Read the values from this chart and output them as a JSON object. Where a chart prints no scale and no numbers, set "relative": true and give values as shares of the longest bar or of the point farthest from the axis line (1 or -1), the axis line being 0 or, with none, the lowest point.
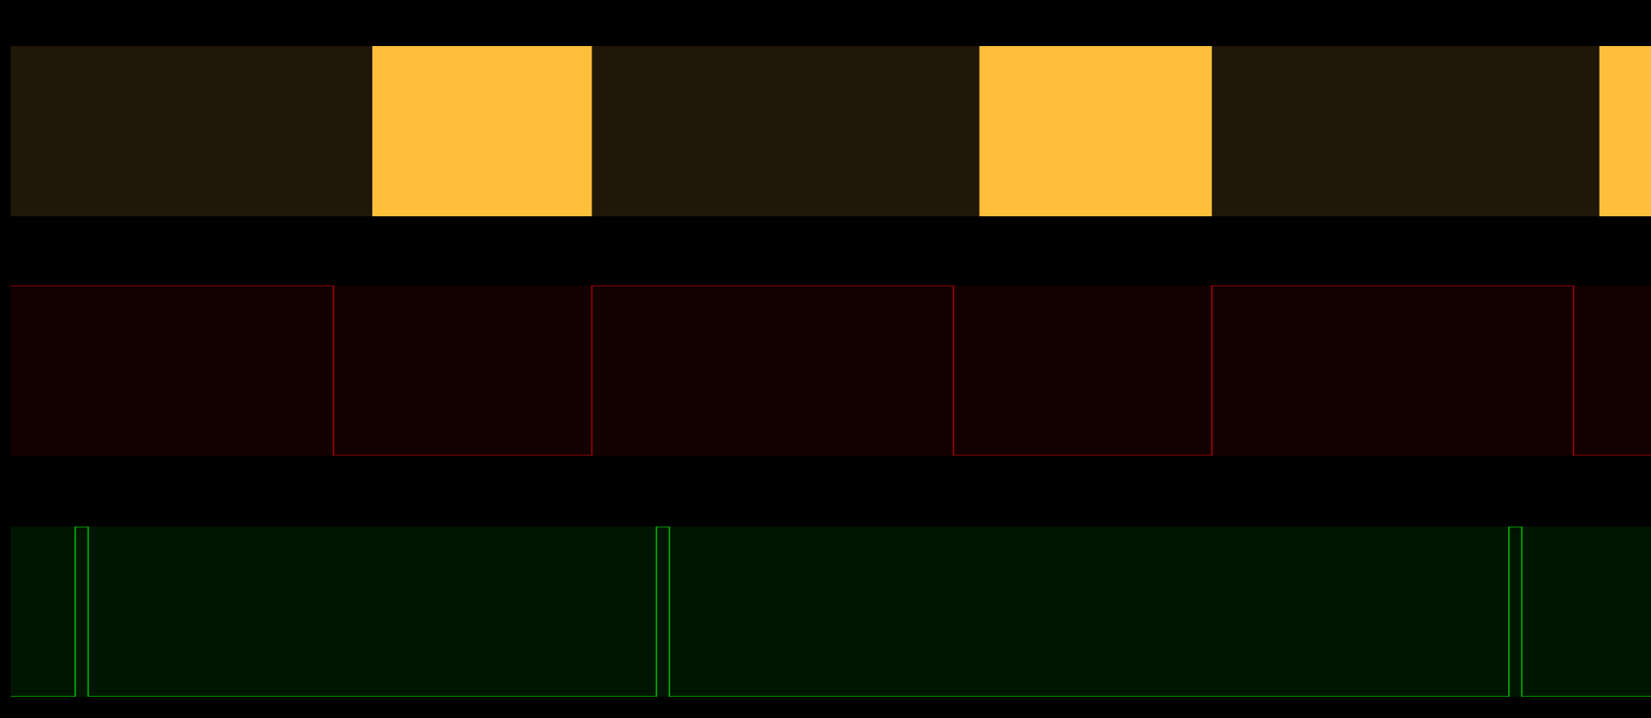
{
  "chart_data": [
    {
      "type": "area",
      "relative": true,
      "categories": [
        null,
        null,
        null,
        null,
        null,
        null,
        null,
        null,
        null,
        null,
        null,
        null,
        null,
        null,
        null,
        null,
        null,
        null,
        null,
        null,
        null,
        null,
        null,
        null,
        null,
        null,
        null,
        null,
        null,
        null,
        null,
        null,
        null,
        null,
        null,
        null,
        null,
        null,
        null,
        null,
        null,
        null,
        null,
        null,
        null,
        null,
        null,
        null,
        null,
        null,
        null,
        null,
        null,
        null,
        null,
        null,
        null,
        null,
        null,
        null,
        null,
        null,
        null,
        null,
        null,
        null,
        null,
        null,
        null,
        null,
        null,
        null,
        null,
        null,
        null,
        null,
        null,
        null,
        null,
        null,
        null,
        null,
        null,
        null,
        null,
        null,
        null,
        null,
        null,
        null,
        null,
        null,
        null,
        null,
        null,
        null,
        null,
        null,
        null,
        null,
        null,
        null,
        null,
        null,
        null,
        null,
        null,
        null,
        null,
        null,
        null,
        null,
        null,
        null,
        null,
        null,
        null,
        null,
        null,
        null,
        null,
        null,
        null,
        null,
        null,
        null,
        null,
        null
      ],
      "series": [
        {
          "color": "#ffbf3a",
          "values": [
            0,
            0,
            0,
            0,
            0,
            0,
            0,
            0,
            0,
            0,
            0,
            0,
            0,
            0,
            0,
            0,
            0,
            0,
            0,
            0,
            0,
            0,
            0,
            0,
            0,
            0,
            0,
            0,
            1,
            1,
            1,
            1,
            1,
            1,
            1,
            1,
            1,
            1,
            1,
            1,
            1,
            1,
            1,
            1,
            1,
            0,
            0,
            0,
            0,
            0,
            0,
            0,
            0,
            0,
            0,
            0,
            0,
            0,
            0,
            0,
            0,
            0,
            0,
            0,
            0,
            0,
            0,
            0,
            0,
            0,
            0,
            0,
            0,
            0,
            0,
            1,
            1,
            1,
            1,
            1,
            1,
            1,
            1,
            1,
            1,
            1,
            1,
            1,
            1,
            1,
            1,
            1,
            1,
            0,
            0,
            0,
            0,
            0,
            0,
            0,
            0,
            0,
            0,
            0,
            0,
            0,
            0,
            0,
            0,
            0,
            0,
            0,
            0,
            0,
            0,
            0,
            0,
            0,
            0,
            0,
            0,
            0,
            0,
            1,
            1,
            1,
            1,
            1
          ]
        }
      ]
    },
    {
      "type": "step",
      "relative": true,
      "categories": [
        null,
        null,
        null,
        null,
        null,
        null,
        null,
        null,
        null,
        null,
        null,
        null,
        null,
        null,
        null,
        null,
        null,
        null,
        null,
        null,
        null,
        null,
        null,
        null,
        null,
        null,
        null,
        null,
        null,
        null,
        null,
        null,
        null,
        null,
        null,
        null,
        null,
        null,
        null,
        null,
        null,
        null,
        null,
        null,
        null,
        null,
        null,
        null,
        null,
        null,
        null,
        null,
        null,
        null,
        null,
        null,
        null,
        null,
        null,
        null,
        null,
        null,
        null,
        null,
        null,
        null,
        null,
        null,
        null,
        null,
        null,
        null,
        null,
        null,
        null,
        null,
        null,
        null,
        null,
        null,
        null,
        null,
        null,
        null,
        null,
        null,
        null,
        null,
        null,
        null,
        null,
        null,
        null,
        null,
        null,
        null,
        null,
        null,
        null,
        null,
        null,
        null,
        null,
        null,
        null,
        null,
        null,
        null,
        null,
        null,
        null,
        null,
        null,
        null,
        null,
        null,
        null,
        null,
        null,
        null,
        null,
        null,
        null,
        null,
        null,
        null,
        null,
        null
      ],
      "series": [
        {
          "color": "#a00000",
          "values": [
            1,
            1,
            1,
            1,
            1,
            1,
            1,
            1,
            1,
            1,
            1,
            1,
            1,
            1,
            1,
            1,
            1,
            1,
            1,
            1,
            1,
            1,
            1,
            1,
            1,
            0,
            0,
            0,
            0,
            0,
            0,
            0,
            0,
            0,
            0,
            0,
            0,
            0,
            0,
            0,
            0,
            0,
            0,
            0,
            0,
            1,
            1,
            1,
            1,
            1,
            1,
            1,
            1,
            1,
            1,
            1,
            1,
            1,
            1,
            1,
            1,
            1,
            1,
            1,
            1,
            1,
            1,
            1,
            1,
            1,
            1,
            1,
            1,
            0,
            0,
            0,
            0,
            0,
            0,
            0,
            0,
            0,
            0,
            0,
            0,
            0,
            0,
            0,
            0,
            0,
            0,
            0,
            0,
            1,
            1,
            1,
            1,
            1,
            1,
            1,
            1,
            1,
            1,
            1,
            1,
            1,
            1,
            1,
            1,
            1,
            1,
            1,
            1,
            1,
            1,
            1,
            1,
            1,
            1,
            1,
            1,
            0,
            0,
            0,
            0,
            0,
            0,
            0
          ]
        }
      ]
    },
    {
      "type": "step",
      "relative": true,
      "categories": [
        null,
        null,
        null,
        null,
        null,
        null,
        null,
        null,
        null,
        null,
        null,
        null,
        null,
        null,
        null,
        null,
        null,
        null,
        null,
        null,
        null,
        null,
        null,
        null,
        null,
        null,
        null,
        null,
        null,
        null,
        null,
        null,
        null,
        null,
        null,
        null,
        null,
        null,
        null,
        null,
        null,
        null,
        null,
        null,
        null,
        null,
        null,
        null,
        null,
        null,
        null,
        null,
        null,
        null,
        null,
        null,
        null,
        null,
        null,
        null,
        null,
        null,
        null,
        null,
        null,
        null,
        null,
        null,
        null,
        null,
        null,
        null,
        null,
        null,
        null,
        null,
        null,
        null,
        null,
        null,
        null,
        null,
        null,
        null,
        null,
        null,
        null,
        null,
        null,
        null,
        null,
        null,
        null,
        null,
        null,
        null,
        null,
        null,
        null,
        null,
        null,
        null,
        null,
        null,
        null,
        null,
        null,
        null,
        null,
        null,
        null,
        null,
        null,
        null,
        null,
        null,
        null,
        null,
        null,
        null,
        null,
        null,
        null,
        null,
        null,
        null,
        null,
        null
      ],
      "series": [
        {
          "color": "#00b000",
          "values": [
            0,
            0,
            0,
            0,
            0,
            1,
            0,
            0,
            0,
            0,
            0,
            0,
            0,
            0,
            0,
            0,
            0,
            0,
            0,
            0,
            0,
            0,
            0,
            0,
            0,
            0,
            0,
            0,
            0,
            0,
            0,
            0,
            0,
            0,
            0,
            0,
            0,
            0,
            0,
            0,
            0,
            0,
            0,
            0,
            0,
            0,
            0,
            0,
            0,
            0,
            1,
            0,
            0,
            0,
            0,
            0,
            0,
            0,
            0,
            0,
            0,
            0,
            0,
            0,
            0,
            0,
            0,
            0,
            0,
            0,
            0,
            0,
            0,
            0,
            0,
            0,
            0,
            0,
            0,
            0,
            0,
            0,
            0,
            0,
            0,
            0,
            0,
            0,
            0,
            0,
            0,
            0,
            0,
            0,
            0,
            0,
            0,
            0,
            0,
            0,
            0,
            0,
            0,
            0,
            0,
            0,
            0,
            0,
            0,
            0,
            0,
            0,
            0,
            0,
            0,
            0,
            1,
            0,
            0,
            0,
            0,
            0,
            0,
            0,
            0,
            0,
            0,
            0
          ]
        }
      ]
    }
  ]
}
